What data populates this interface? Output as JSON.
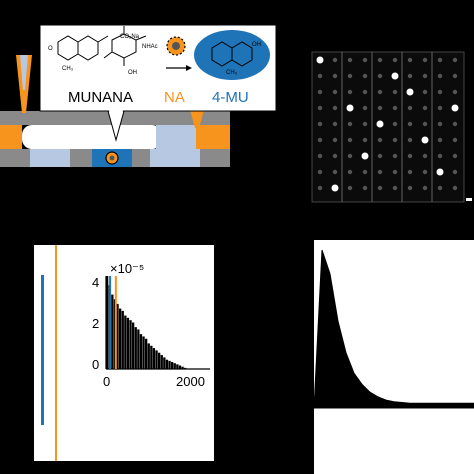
{
  "panel_a": {
    "substrate_label": "MUNANA",
    "enzyme_label": "NA",
    "product_label": "4-MU",
    "chem_text": {
      "co2na": "CO₂Na",
      "nhac": "NHAc",
      "oh": "OH",
      "ch3": "CH₃",
      "o": "O"
    },
    "colors": {
      "orange": "#f7941d",
      "blue": "#1f73b7",
      "gray": "#7f7f7f",
      "light_blue": "#b7c9e2"
    }
  },
  "panel_b": {
    "description_colors": {
      "background": "#0b0b0b"
    }
  },
  "panel_c": {
    "inset": {
      "exponent_label": "×10⁻⁵",
      "y_ticks": [
        "0",
        "2",
        "4"
      ],
      "x_ticks": [
        "0",
        "2000"
      ]
    },
    "colors": {
      "orange": "#f7941d",
      "blue": "#1f73b7"
    }
  },
  "chart_data": [
    {
      "type": "bar",
      "x": [
        0,
        50,
        100,
        150,
        200,
        250,
        300,
        350,
        400,
        450,
        500,
        550,
        600,
        650,
        700,
        750,
        800,
        850,
        900,
        950,
        1000,
        1050,
        1100,
        1150,
        1200,
        1250,
        1300,
        1350,
        1400,
        1450,
        1500
      ],
      "values": [
        4.0,
        3.6,
        3.2,
        3.0,
        2.8,
        2.6,
        2.5,
        2.3,
        2.2,
        2.1,
        2.0,
        1.8,
        1.7,
        1.5,
        1.4,
        1.3,
        1.1,
        1.0,
        0.9,
        0.8,
        0.7,
        0.6,
        0.5,
        0.4,
        0.35,
        0.3,
        0.25,
        0.2,
        0.15,
        0.1,
        0.05
      ],
      "xlim": [
        0,
        2000
      ],
      "ylim": [
        0,
        4
      ],
      "y_multiplier": "×10⁻⁵",
      "x_ticks": [
        0,
        2000
      ],
      "y_ticks": [
        0,
        2,
        4
      ],
      "markers": [
        {
          "x": 60,
          "color": "#1f73b7"
        },
        {
          "x": 170,
          "color": "#f7941d"
        }
      ]
    },
    {
      "type": "area",
      "x": [
        0,
        50,
        100,
        150,
        200,
        250,
        300,
        350,
        400,
        450,
        500,
        600,
        700,
        800,
        900,
        1000
      ],
      "values": [
        0,
        1.0,
        0.85,
        0.55,
        0.35,
        0.22,
        0.15,
        0.1,
        0.07,
        0.05,
        0.04,
        0.03,
        0.03,
        0.03,
        0.03,
        0.03
      ]
    }
  ]
}
